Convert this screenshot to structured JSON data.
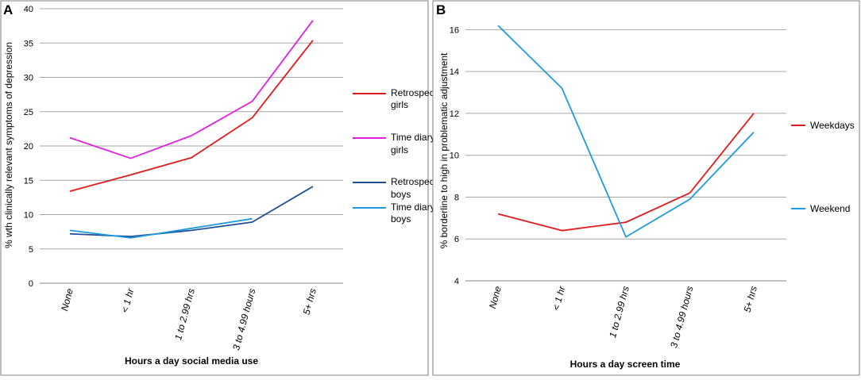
{
  "chart_data": [
    {
      "panel_label": "A",
      "type": "line",
      "title": "",
      "xlabel": "Hours a day social media use",
      "ylabel": "% wth clinically relevant symptoms of depression",
      "ylim": [
        0,
        40
      ],
      "y_ticks": [
        "0",
        "5",
        "10",
        "15",
        "20",
        "25",
        "30",
        "35",
        "40"
      ],
      "grid": true,
      "legend_position": "right",
      "categories": [
        "None",
        "< 1 hr",
        "1 to 2.99 hrs",
        "3 to 4.99 hours",
        "5+ hrs"
      ],
      "series": [
        {
          "name": "Retrospective, girls",
          "legend_lines": [
            "Retrospective,",
            "girls"
          ],
          "color": "#e31a1c",
          "values": [
            13.4,
            15.8,
            18.3,
            24.1,
            35.4
          ]
        },
        {
          "name": "Time diary, girls",
          "legend_lines": [
            "Time diary,",
            "girls"
          ],
          "color": "#e020e0",
          "values": [
            21.2,
            18.2,
            21.5,
            26.5,
            38.3
          ]
        },
        {
          "name": "Retrospective, boys",
          "legend_lines": [
            "Retrospective,",
            "boys"
          ],
          "color": "#1f4e96",
          "values": [
            7.2,
            6.8,
            7.7,
            8.9,
            14.1
          ]
        },
        {
          "name": "Time diary, boys",
          "legend_lines": [
            "Time diary,",
            "boys"
          ],
          "color": "#1f9ae0",
          "values": [
            7.7,
            6.6,
            8.0,
            9.4,
            null
          ]
        }
      ]
    },
    {
      "panel_label": "B",
      "type": "line",
      "title": "",
      "xlabel": "Hours a day screen time",
      "ylabel": "% borderline to high in problematic adjustment",
      "ylim": [
        4,
        17
      ],
      "y_ticks": [
        "4",
        "6",
        "8",
        "10",
        "12",
        "14",
        "16"
      ],
      "y_tick_values": [
        4,
        6,
        8,
        10,
        12,
        14,
        16
      ],
      "grid": true,
      "legend_position": "right",
      "categories": [
        "None",
        "< 1 hr",
        "1 to 2.99 hrs",
        "3 to 4.99 hours",
        "5+ hrs"
      ],
      "series": [
        {
          "name": "Weekdays",
          "legend_lines": [
            "Weekdays"
          ],
          "color": "#e31a1c",
          "values": [
            7.2,
            6.4,
            6.8,
            8.2,
            12.0
          ]
        },
        {
          "name": "Weekend",
          "legend_lines": [
            "Weekend"
          ],
          "color": "#1f9ae0",
          "values": [
            16.2,
            13.2,
            6.1,
            7.9,
            11.1
          ]
        }
      ]
    }
  ]
}
